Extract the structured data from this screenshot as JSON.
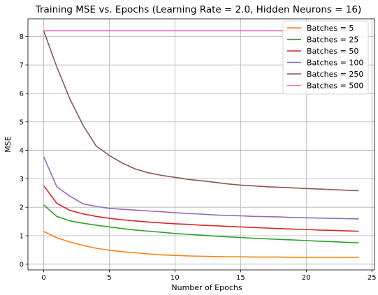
{
  "chart_data": {
    "type": "line",
    "title": "Training MSE vs. Epochs (Learning Rate = 2.0, Hidden Neurons = 16)",
    "xlabel": "Number of Epochs",
    "ylabel": "MSE",
    "xlim": [
      -1.2,
      25.2
    ],
    "ylim": [
      -0.2,
      8.62
    ],
    "xticks": [
      0,
      5,
      10,
      15,
      20,
      25
    ],
    "yticks": [
      0,
      1,
      2,
      3,
      4,
      5,
      6,
      7,
      8
    ],
    "grid": true,
    "legend_position": "top-right",
    "x": [
      0,
      1,
      2,
      3,
      4,
      5,
      6,
      7,
      8,
      9,
      10,
      11,
      12,
      13,
      14,
      15,
      16,
      17,
      18,
      19,
      20,
      21,
      22,
      23,
      24
    ],
    "series": [
      {
        "name": "Batches = 5",
        "color": "#ff7f0e",
        "values": [
          1.15,
          0.93,
          0.78,
          0.66,
          0.56,
          0.49,
          0.44,
          0.4,
          0.36,
          0.33,
          0.31,
          0.29,
          0.28,
          0.27,
          0.26,
          0.26,
          0.25,
          0.25,
          0.25,
          0.24,
          0.24,
          0.24,
          0.24,
          0.24,
          0.24
        ]
      },
      {
        "name": "Batches = 25",
        "color": "#2ca02c",
        "values": [
          2.08,
          1.68,
          1.52,
          1.44,
          1.37,
          1.31,
          1.25,
          1.2,
          1.16,
          1.12,
          1.08,
          1.05,
          1.02,
          0.99,
          0.96,
          0.94,
          0.91,
          0.89,
          0.87,
          0.85,
          0.83,
          0.81,
          0.79,
          0.77,
          0.75
        ]
      },
      {
        "name": "Batches = 50",
        "color": "#d62728",
        "values": [
          2.76,
          2.14,
          1.89,
          1.77,
          1.68,
          1.61,
          1.56,
          1.52,
          1.48,
          1.45,
          1.42,
          1.4,
          1.37,
          1.35,
          1.33,
          1.31,
          1.29,
          1.27,
          1.25,
          1.23,
          1.22,
          1.2,
          1.19,
          1.17,
          1.16
        ]
      },
      {
        "name": "Batches = 100",
        "color": "#9467bd",
        "values": [
          3.78,
          2.72,
          2.39,
          2.12,
          2.03,
          1.96,
          1.93,
          1.9,
          1.87,
          1.84,
          1.81,
          1.78,
          1.76,
          1.73,
          1.71,
          1.7,
          1.68,
          1.67,
          1.66,
          1.64,
          1.63,
          1.62,
          1.61,
          1.6,
          1.59
        ]
      },
      {
        "name": "Batches = 250",
        "color": "#8c564b",
        "values": [
          8.2,
          6.93,
          5.8,
          4.88,
          4.15,
          3.82,
          3.55,
          3.34,
          3.21,
          3.12,
          3.05,
          2.98,
          2.93,
          2.88,
          2.82,
          2.78,
          2.75,
          2.72,
          2.7,
          2.68,
          2.66,
          2.64,
          2.62,
          2.6,
          2.58
        ]
      },
      {
        "name": "Batches = 500",
        "color": "#e377c2",
        "values": [
          8.2,
          8.2,
          8.2,
          8.2,
          8.2,
          8.2,
          8.2,
          8.2,
          8.2,
          8.2,
          8.2,
          8.2,
          8.2,
          8.2,
          8.2,
          8.2,
          8.2,
          8.2,
          8.2,
          8.2,
          8.2,
          8.2,
          8.2,
          8.2,
          8.2
        ]
      }
    ]
  }
}
